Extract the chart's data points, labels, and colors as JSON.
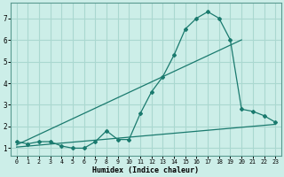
{
  "xlabel": "Humidex (Indice chaleur)",
  "bg_color": "#cceee8",
  "grid_color": "#aad8d0",
  "line_color": "#1a7a6e",
  "x_ticks": [
    0,
    1,
    2,
    3,
    4,
    5,
    6,
    7,
    8,
    9,
    10,
    11,
    12,
    13,
    14,
    15,
    16,
    17,
    18,
    19,
    20,
    21,
    22,
    23
  ],
  "y_ticks": [
    1,
    2,
    3,
    4,
    5,
    6,
    7
  ],
  "ylim": [
    0.65,
    7.7
  ],
  "xlim": [
    -0.5,
    23.5
  ],
  "main_x": [
    0,
    1,
    2,
    3,
    4,
    5,
    6,
    7,
    8,
    9,
    10,
    11,
    12,
    13,
    14,
    15,
    16,
    17,
    18,
    19,
    20,
    21,
    22,
    23
  ],
  "main_y": [
    1.3,
    1.2,
    1.3,
    1.3,
    1.1,
    1.0,
    1.0,
    1.3,
    1.8,
    1.4,
    1.4,
    2.6,
    3.6,
    4.3,
    5.3,
    6.5,
    7.0,
    7.3,
    7.0,
    6.0,
    2.8,
    2.7,
    2.5,
    2.2
  ],
  "line1_x": [
    0,
    20
  ],
  "line1_y": [
    1.15,
    6.0
  ],
  "line2_x": [
    0,
    23
  ],
  "line2_y": [
    1.05,
    2.1
  ]
}
